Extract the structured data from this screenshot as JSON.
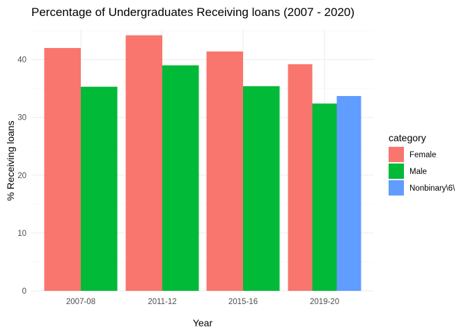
{
  "chart_data": {
    "type": "bar",
    "title": "Percentage of Undergraduates Receiving loans (2007 - 2020)",
    "xlabel": "Year",
    "ylabel": "% Receiving loans",
    "categories": [
      "2007-08",
      "2011-12",
      "2015-16",
      "2019-20"
    ],
    "ylim": [
      0,
      45.5
    ],
    "yticks": [
      0,
      10,
      20,
      30,
      40
    ],
    "grid": true,
    "legend": {
      "title": "category",
      "placement": "right"
    },
    "series": [
      {
        "name": "Female",
        "color": "#F8766D",
        "values": [
          42.0,
          44.2,
          41.4,
          39.2
        ]
      },
      {
        "name": "Male",
        "color": "#00BA38",
        "values": [
          35.3,
          39.0,
          35.4,
          32.4
        ]
      },
      {
        "name": "Nonbinary\\6\\",
        "color": "#619CFF",
        "values": [
          null,
          null,
          null,
          33.7
        ]
      }
    ]
  }
}
